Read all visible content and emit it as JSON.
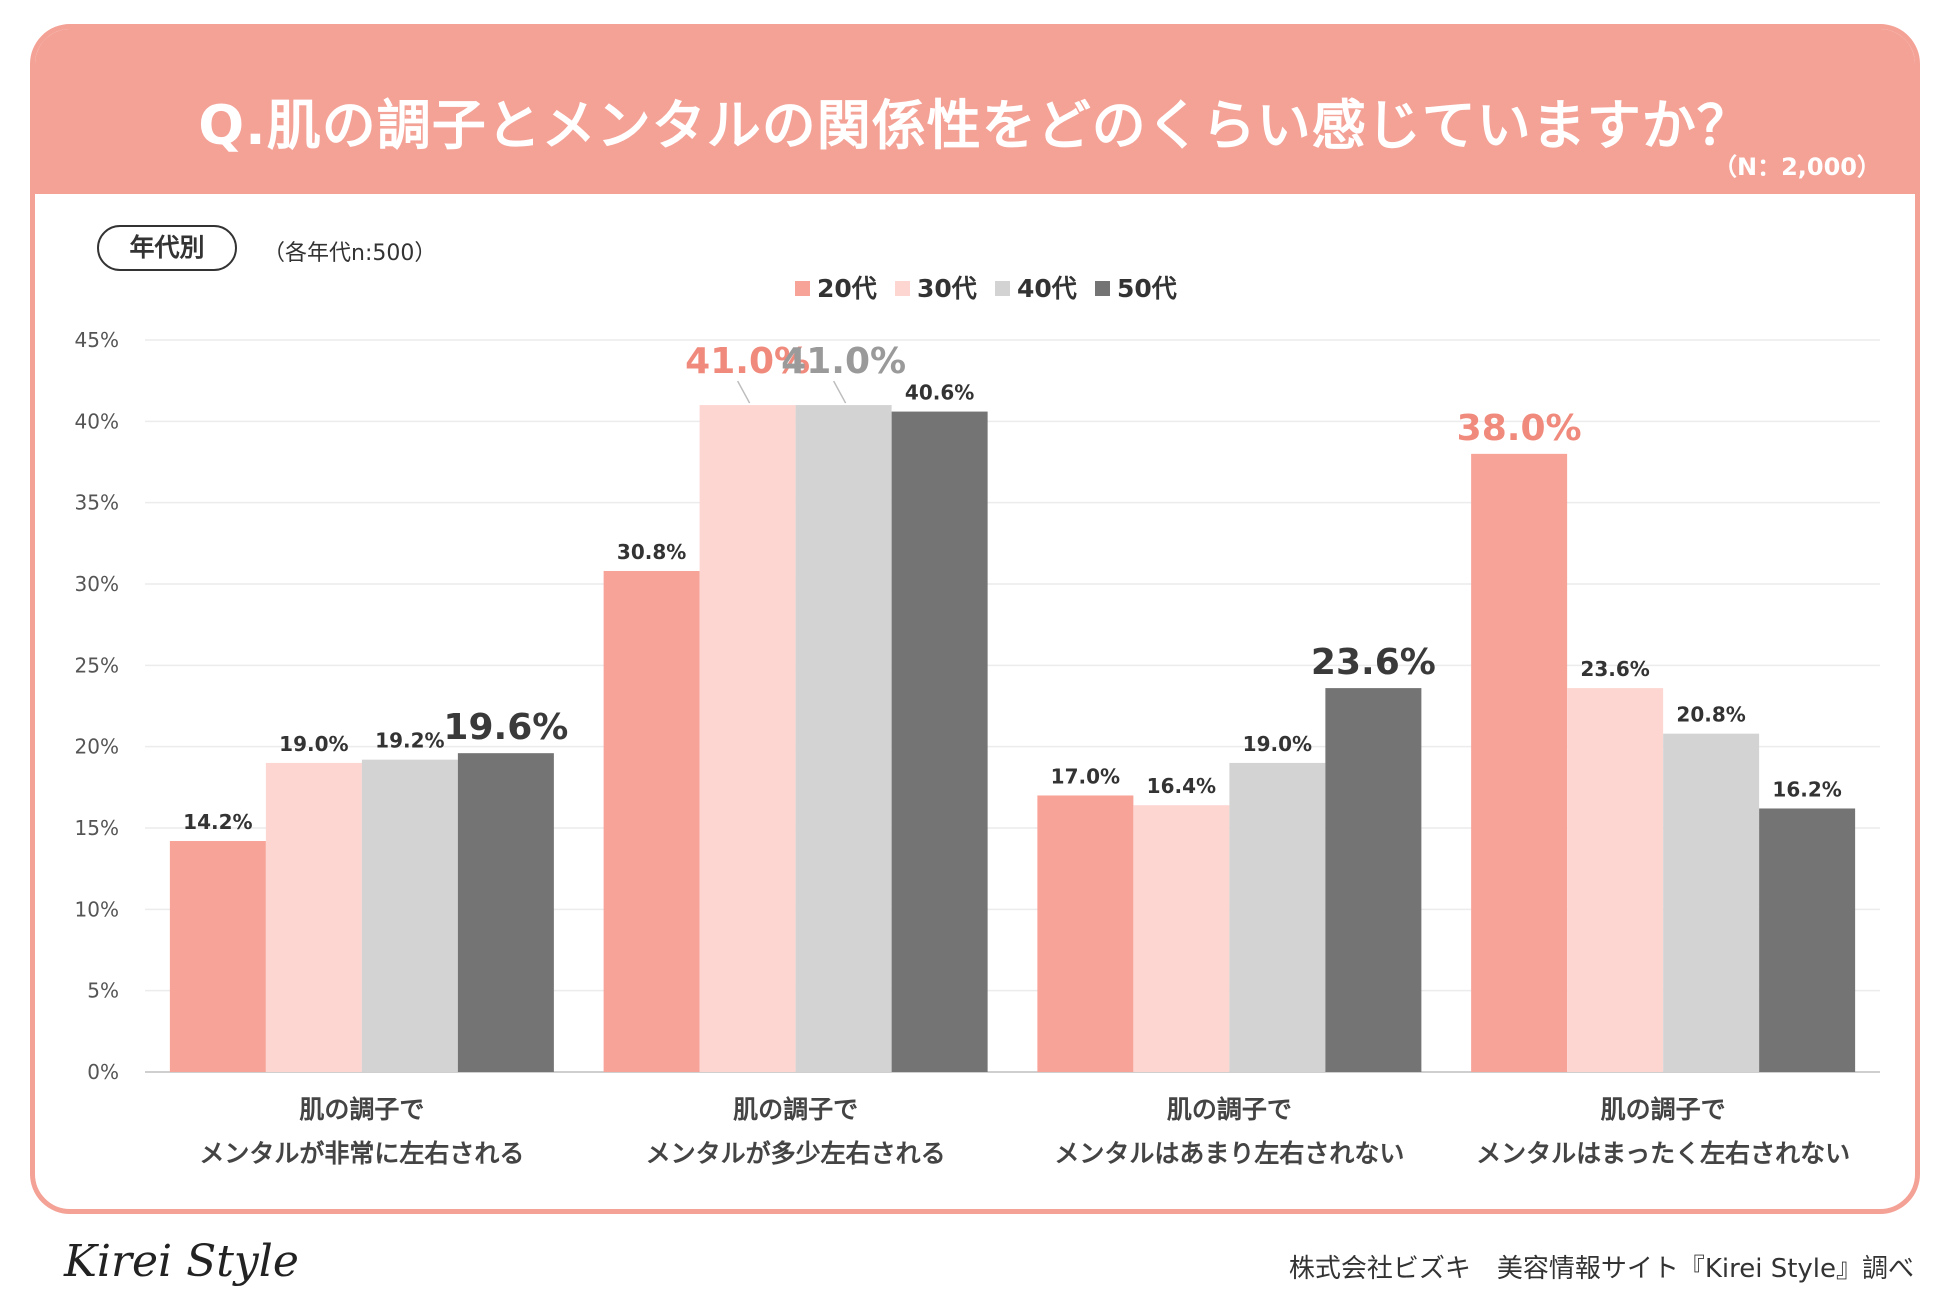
{
  "header": {
    "title": "Q.肌の調子とメンタルの関係性をどのくらい感じていますか？",
    "sample_total": "（N：2,000）"
  },
  "segment": {
    "label": "年代別",
    "note": "（各年代n:500）"
  },
  "colors": {
    "banner": "#f4a196",
    "series": [
      "#f8a398",
      "#fdd5d1",
      "#d3d3d3",
      "#747474"
    ],
    "label_normal": "#333333",
    "label_highlight_20": "#f08a7c",
    "label_highlight_40": "#9a9a9a",
    "label_highlight_50": "#3a3a3a"
  },
  "chart_data": {
    "type": "bar",
    "title": "Q.肌の調子とメンタルの関係性をどのくらい感じていますか？",
    "xlabel": "",
    "ylabel": "",
    "ylim": [
      0,
      45
    ],
    "ytick_step": 5,
    "grid": true,
    "legend_position": "top",
    "categories": [
      [
        "肌の調子で",
        "メンタルが非常に左右される"
      ],
      [
        "肌の調子で",
        "メンタルが多少左右される"
      ],
      [
        "肌の調子で",
        "メンタルはあまり左右されない"
      ],
      [
        "肌の調子で",
        "メンタルはまったく左右されない"
      ]
    ],
    "series": [
      {
        "name": "20代",
        "values": [
          14.2,
          30.8,
          17.0,
          38.0
        ],
        "labels": [
          "14.2%",
          "30.8%",
          "17.0%",
          "38.0%"
        ]
      },
      {
        "name": "30代",
        "values": [
          19.0,
          41.0,
          16.4,
          23.6
        ],
        "labels": [
          "19.0%",
          "41.0%",
          "16.4%",
          "23.6%"
        ]
      },
      {
        "name": "40代",
        "values": [
          19.2,
          41.0,
          19.0,
          20.8
        ],
        "labels": [
          "19.2%",
          "41.0%",
          "19.0%",
          "20.8%"
        ]
      },
      {
        "name": "50代",
        "values": [
          19.6,
          40.6,
          23.6,
          16.2
        ],
        "labels": [
          "19.6%",
          "40.6%",
          "23.6%",
          "16.2%"
        ]
      }
    ],
    "highlights": [
      {
        "series": 3,
        "category": 0
      },
      {
        "series": 1,
        "category": 1
      },
      {
        "series": 2,
        "category": 1
      },
      {
        "series": 3,
        "category": 2
      },
      {
        "series": 0,
        "category": 3
      }
    ]
  },
  "footer": {
    "logo": "Kirei Style",
    "credit": "株式会社ビズキ　美容情報サイト『Kirei Style』調べ"
  }
}
